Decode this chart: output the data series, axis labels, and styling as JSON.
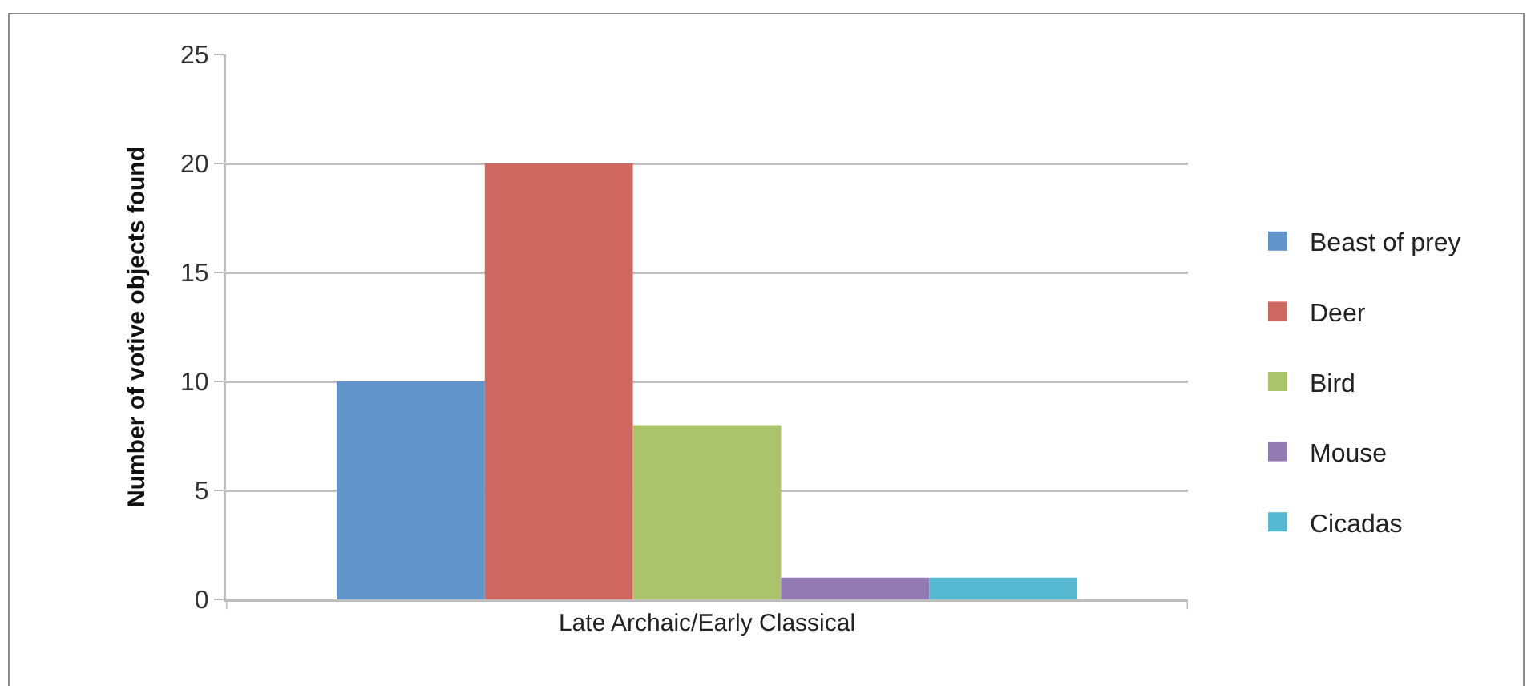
{
  "chart_data": {
    "type": "bar",
    "ylabel": "Number of votive objects found",
    "categories": [
      "Late Archaic/Early Classical"
    ],
    "series": [
      {
        "name": "Beast of prey",
        "color": "#6195ca",
        "values": [
          10
        ]
      },
      {
        "name": "Deer",
        "color": "#cf6761",
        "values": [
          20
        ]
      },
      {
        "name": "Bird",
        "color": "#abc46c",
        "values": [
          8
        ]
      },
      {
        "name": "Mouse",
        "color": "#937ab2",
        "values": [
          1
        ]
      },
      {
        "name": "Cicadas",
        "color": "#55b9d1",
        "values": [
          1
        ]
      }
    ],
    "ylim": [
      0,
      25
    ],
    "yticks": [
      0,
      5,
      10,
      15,
      20,
      25
    ],
    "grid": "y",
    "legend": "right"
  }
}
